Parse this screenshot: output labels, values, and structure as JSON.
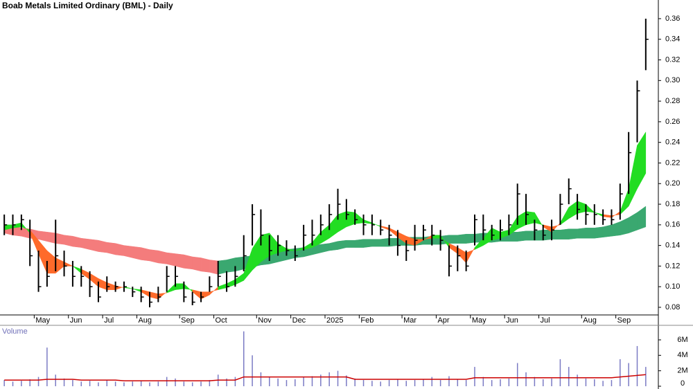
{
  "chart_data": [
    {
      "type": "ohlc",
      "title": "Boab Metals Limited Ordinary (BML) - Daily",
      "color": "#000000",
      "categories": [
        null,
        null,
        null,
        null,
        "May",
        null,
        null,
        null,
        "Jun",
        null,
        null,
        null,
        "Jul",
        null,
        null,
        null,
        "Aug",
        null,
        null,
        null,
        null,
        "Sep",
        null,
        null,
        null,
        "Oct",
        null,
        null,
        null,
        null,
        "Nov",
        null,
        null,
        null,
        "Dec",
        null,
        null,
        null,
        "2025",
        null,
        null,
        null,
        "Feb",
        null,
        null,
        null,
        null,
        "Mar",
        null,
        null,
        null,
        "Apr",
        null,
        null,
        null,
        "May",
        null,
        null,
        null,
        "Jun",
        null,
        null,
        null,
        "Jul",
        null,
        null,
        null,
        null,
        "Aug",
        null,
        null,
        null,
        "Sep",
        null,
        null,
        null
      ],
      "high": [
        0.17,
        0.17,
        0.17,
        0.165,
        0.135,
        0.125,
        0.165,
        0.135,
        0.125,
        0.12,
        0.115,
        0.105,
        0.11,
        0.105,
        0.105,
        0.1,
        0.1,
        0.095,
        0.1,
        0.12,
        0.12,
        0.105,
        0.095,
        0.095,
        0.11,
        0.125,
        0.115,
        0.12,
        0.15,
        0.18,
        0.175,
        0.15,
        0.15,
        0.145,
        0.14,
        0.16,
        0.165,
        0.17,
        0.18,
        0.195,
        0.185,
        0.175,
        0.17,
        0.17,
        0.165,
        0.16,
        0.155,
        0.145,
        0.16,
        0.16,
        0.16,
        0.155,
        0.14,
        0.14,
        0.135,
        0.17,
        0.17,
        0.16,
        0.165,
        0.17,
        0.2,
        0.19,
        0.165,
        0.16,
        0.165,
        0.19,
        0.205,
        0.19,
        0.18,
        0.18,
        0.175,
        0.175,
        0.2,
        0.25,
        0.3,
        0.36
      ],
      "low": [
        0.15,
        0.15,
        0.155,
        0.12,
        0.095,
        0.1,
        0.115,
        0.11,
        0.1,
        0.1,
        0.09,
        0.085,
        0.095,
        0.095,
        0.095,
        0.09,
        0.085,
        0.08,
        0.085,
        0.095,
        0.1,
        0.085,
        0.082,
        0.085,
        0.095,
        0.1,
        0.095,
        0.1,
        0.115,
        0.14,
        0.14,
        0.125,
        0.13,
        0.13,
        0.125,
        0.135,
        0.14,
        0.15,
        0.155,
        0.165,
        0.165,
        0.16,
        0.15,
        0.15,
        0.15,
        0.14,
        0.13,
        0.125,
        0.135,
        0.145,
        0.14,
        0.135,
        0.11,
        0.115,
        0.115,
        0.14,
        0.145,
        0.145,
        0.145,
        0.15,
        0.16,
        0.16,
        0.145,
        0.145,
        0.145,
        0.16,
        0.18,
        0.165,
        0.16,
        0.16,
        0.16,
        0.16,
        0.165,
        0.19,
        0.24,
        0.31
      ],
      "close": [
        0.16,
        0.16,
        0.165,
        0.13,
        0.1,
        0.11,
        0.13,
        0.12,
        0.11,
        0.11,
        0.1,
        0.09,
        0.1,
        0.1,
        0.1,
        0.095,
        0.09,
        0.085,
        0.09,
        0.11,
        0.11,
        0.09,
        0.085,
        0.09,
        0.1,
        0.11,
        0.1,
        0.11,
        0.13,
        0.17,
        0.15,
        0.135,
        0.14,
        0.135,
        0.13,
        0.15,
        0.15,
        0.16,
        0.17,
        0.18,
        0.17,
        0.165,
        0.16,
        0.16,
        0.155,
        0.15,
        0.14,
        0.135,
        0.145,
        0.155,
        0.15,
        0.145,
        0.12,
        0.13,
        0.12,
        0.165,
        0.155,
        0.15,
        0.155,
        0.16,
        0.19,
        0.17,
        0.155,
        0.15,
        0.155,
        0.18,
        0.195,
        0.175,
        0.17,
        0.17,
        0.165,
        0.165,
        0.19,
        0.23,
        0.29,
        0.34
      ],
      "ribbons": [
        {
          "color_by": "slope",
          "up_color": "#3aa870",
          "down_color": "#f47c7c",
          "fast": [
            0.16,
            0.159,
            0.157,
            0.156,
            0.154,
            0.153,
            0.152,
            0.15,
            0.149,
            0.147,
            0.146,
            0.145,
            0.143,
            0.142,
            0.14,
            0.139,
            0.138,
            0.136,
            0.135,
            0.133,
            0.132,
            0.131,
            0.129,
            0.128,
            0.126,
            0.125,
            0.126,
            0.128,
            0.129,
            0.13,
            0.132,
            0.133,
            0.134,
            0.136,
            0.137,
            0.138,
            0.14,
            0.141,
            0.142,
            0.144,
            0.145,
            0.145,
            0.146,
            0.146,
            0.146,
            0.147,
            0.147,
            0.148,
            0.148,
            0.148,
            0.149,
            0.149,
            0.15,
            0.15,
            0.151,
            0.151,
            0.152,
            0.152,
            0.152,
            0.153,
            0.153,
            0.154,
            0.154,
            0.155,
            0.155,
            0.155,
            0.156,
            0.156,
            0.157,
            0.157,
            0.158,
            0.16,
            0.163,
            0.167,
            0.172,
            0.178
          ],
          "slow": [
            0.152,
            0.15,
            0.149,
            0.147,
            0.146,
            0.144,
            0.142,
            0.141,
            0.139,
            0.138,
            0.136,
            0.134,
            0.133,
            0.131,
            0.13,
            0.128,
            0.126,
            0.125,
            0.123,
            0.122,
            0.12,
            0.118,
            0.117,
            0.115,
            0.114,
            0.112,
            0.114,
            0.115,
            0.117,
            0.119,
            0.121,
            0.122,
            0.124,
            0.126,
            0.128,
            0.129,
            0.131,
            0.133,
            0.135,
            0.136,
            0.138,
            0.138,
            0.138,
            0.139,
            0.139,
            0.139,
            0.14,
            0.14,
            0.14,
            0.141,
            0.141,
            0.141,
            0.142,
            0.142,
            0.142,
            0.143,
            0.143,
            0.143,
            0.144,
            0.144,
            0.144,
            0.145,
            0.145,
            0.145,
            0.146,
            0.146,
            0.146,
            0.147,
            0.147,
            0.147,
            0.148,
            0.149,
            0.15,
            0.152,
            0.155,
            0.158
          ]
        },
        {
          "color_by": "cross",
          "up_color": "#22dd22",
          "down_color": "#ff6a2a",
          "fast": [
            0.16,
            0.16,
            0.162,
            0.152,
            0.132,
            0.113,
            0.113,
            0.12,
            0.12,
            0.113,
            0.107,
            0.1,
            0.097,
            0.097,
            0.1,
            0.098,
            0.095,
            0.09,
            0.088,
            0.095,
            0.103,
            0.103,
            0.095,
            0.088,
            0.092,
            0.1,
            0.103,
            0.107,
            0.113,
            0.137,
            0.15,
            0.152,
            0.142,
            0.137,
            0.135,
            0.138,
            0.143,
            0.153,
            0.16,
            0.17,
            0.173,
            0.172,
            0.165,
            0.162,
            0.158,
            0.155,
            0.148,
            0.142,
            0.14,
            0.145,
            0.15,
            0.15,
            0.138,
            0.132,
            0.123,
            0.138,
            0.147,
            0.157,
            0.153,
            0.155,
            0.168,
            0.173,
            0.172,
            0.158,
            0.153,
            0.162,
            0.177,
            0.183,
            0.18,
            0.172,
            0.168,
            0.167,
            0.173,
            0.195,
            0.237,
            0.25
          ],
          "slow": [
            0.155,
            0.157,
            0.158,
            0.155,
            0.145,
            0.135,
            0.128,
            0.124,
            0.12,
            0.117,
            0.113,
            0.108,
            0.104,
            0.101,
            0.099,
            0.098,
            0.097,
            0.095,
            0.093,
            0.094,
            0.097,
            0.098,
            0.097,
            0.095,
            0.095,
            0.097,
            0.099,
            0.102,
            0.106,
            0.116,
            0.124,
            0.13,
            0.133,
            0.135,
            0.135,
            0.136,
            0.138,
            0.142,
            0.147,
            0.153,
            0.158,
            0.161,
            0.162,
            0.161,
            0.159,
            0.157,
            0.153,
            0.149,
            0.146,
            0.146,
            0.147,
            0.147,
            0.142,
            0.138,
            0.133,
            0.136,
            0.14,
            0.145,
            0.147,
            0.15,
            0.156,
            0.16,
            0.162,
            0.16,
            0.158,
            0.16,
            0.166,
            0.171,
            0.173,
            0.172,
            0.17,
            0.169,
            0.17,
            0.178,
            0.195,
            0.21
          ]
        }
      ],
      "ylim": [
        0.0726,
        0.3781
      ],
      "yticks": [
        0.08,
        {
          "value": 0.1,
          "label": "0.10"
        },
        0.12,
        0.14,
        0.16,
        0.18,
        {
          "value": 0.2,
          "label": "0.20"
        },
        0.22,
        0.24,
        0.26,
        0.28,
        {
          "value": 0.3,
          "label": "0.30"
        },
        0.32,
        0.34,
        0.36
      ]
    },
    {
      "type": "volume",
      "title": "Volume",
      "color": "#7a7ac4",
      "ma_color": "#cc0000",
      "values": [
        0.8,
        0.6,
        0.7,
        0.9,
        1.2,
        5.0,
        1.5,
        1.0,
        0.8,
        0.6,
        0.7,
        0.5,
        0.8,
        0.6,
        0.5,
        0.6,
        0.7,
        0.5,
        0.6,
        1.2,
        1.0,
        0.6,
        0.5,
        0.6,
        0.8,
        1.5,
        1.0,
        1.2,
        7.1,
        4.0,
        1.8,
        1.2,
        1.0,
        0.8,
        0.9,
        1.2,
        1.3,
        1.5,
        1.8,
        2.0,
        1.4,
        1.0,
        0.8,
        0.7,
        0.6,
        0.8,
        0.9,
        0.7,
        0.8,
        0.9,
        1.2,
        0.8,
        1.3,
        0.9,
        0.8,
        2.5,
        1.2,
        0.8,
        0.9,
        1.0,
        3.0,
        1.8,
        1.2,
        0.9,
        1.0,
        3.5,
        2.5,
        1.5,
        1.0,
        0.9,
        0.7,
        0.8,
        3.5,
        3.0,
        5.2,
        2.5
      ],
      "ma": [
        0.8,
        0.8,
        0.8,
        0.8,
        0.8,
        0.9,
        0.9,
        0.9,
        0.9,
        0.8,
        0.8,
        0.8,
        0.8,
        0.8,
        0.7,
        0.7,
        0.7,
        0.7,
        0.7,
        0.7,
        0.7,
        0.7,
        0.7,
        0.7,
        0.7,
        0.8,
        0.8,
        0.8,
        1.2,
        1.2,
        1.2,
        1.2,
        1.2,
        1.2,
        1.2,
        1.2,
        1.2,
        1.2,
        1.2,
        1.2,
        1.2,
        0.9,
        0.9,
        0.9,
        0.9,
        0.9,
        0.9,
        0.9,
        0.9,
        0.9,
        0.9,
        0.9,
        0.9,
        0.9,
        0.9,
        1.1,
        1.1,
        1.1,
        1.1,
        1.1,
        1.1,
        1.1,
        1.1,
        1.1,
        1.1,
        1.1,
        1.1,
        1.1,
        1.1,
        1.1,
        1.1,
        1.1,
        1.2,
        1.3,
        1.4,
        1.5
      ],
      "ylim": [
        0,
        7.88
      ],
      "yticks": [
        0,
        {
          "value": 2,
          "label": "2M"
        },
        {
          "value": 4,
          "label": "4M"
        },
        {
          "value": 6,
          "label": "6M"
        }
      ]
    }
  ]
}
